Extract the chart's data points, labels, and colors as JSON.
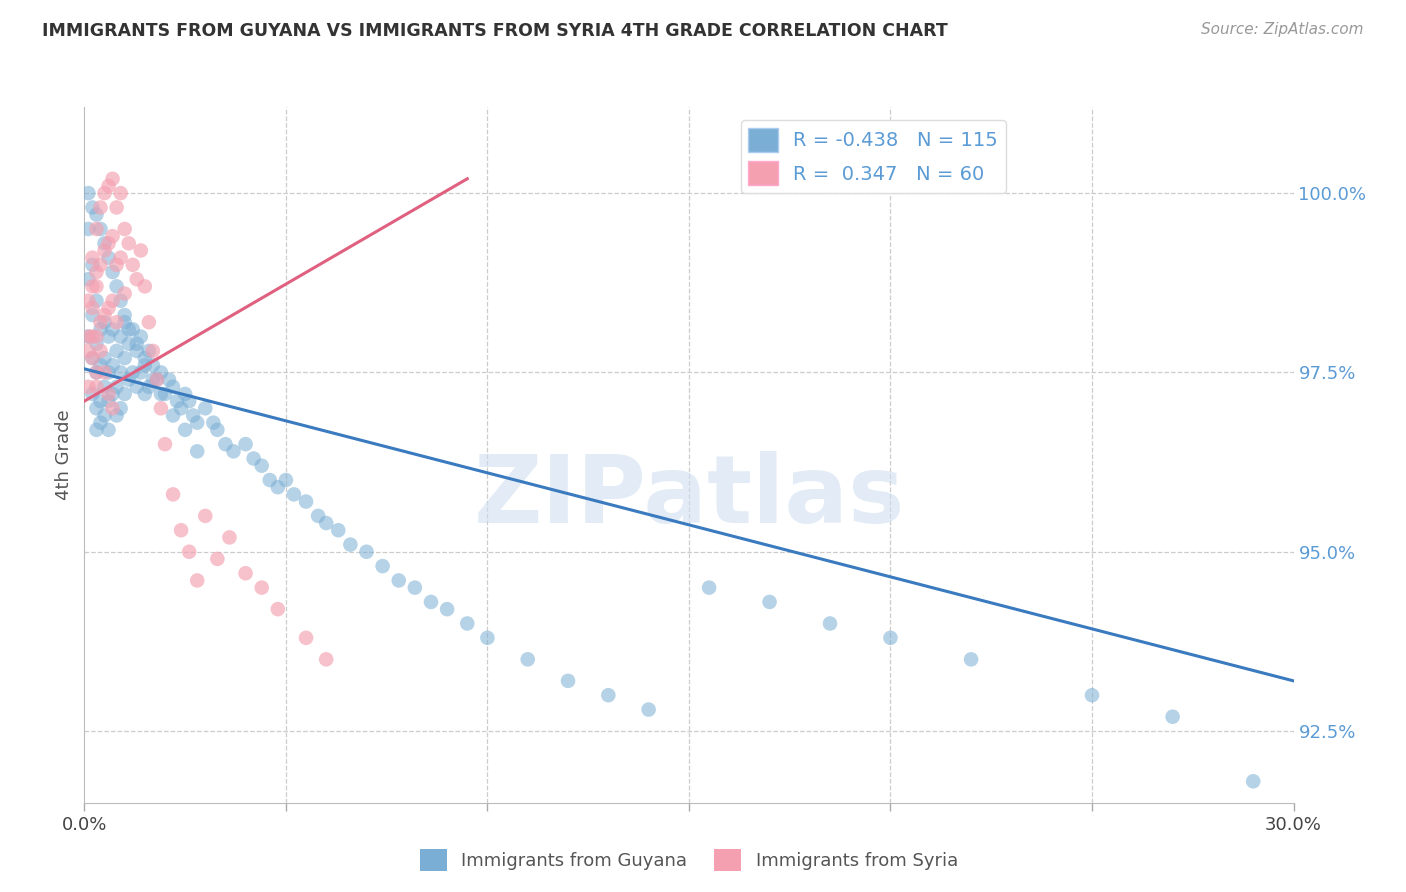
{
  "title": "IMMIGRANTS FROM GUYANA VS IMMIGRANTS FROM SYRIA 4TH GRADE CORRELATION CHART",
  "source": "Source: ZipAtlas.com",
  "ylabel": "4th Grade",
  "watermark": "ZIPatlas",
  "legend_guyana_R": "-0.438",
  "legend_guyana_N": "115",
  "legend_syria_R": "0.347",
  "legend_syria_N": "60",
  "guyana_color": "#7aaed4",
  "syria_color": "#f4a0b0",
  "guyana_line_color": "#3a7abf",
  "syria_line_color": "#e06080",
  "title_color": "#333333",
  "source_color": "#999999",
  "right_axis_color": "#5b9bd5",
  "xlim": [
    0.0,
    0.3
  ],
  "ylim": [
    91.5,
    101.2
  ],
  "x_ticks": [
    0.0,
    0.05,
    0.1,
    0.15,
    0.2,
    0.25,
    0.3
  ],
  "x_tick_labels": [
    "0.0%",
    "",
    "",
    "",
    "",
    "",
    "30.0%"
  ],
  "guyana_line_x0": 0.0,
  "guyana_line_y0": 97.55,
  "guyana_line_x1": 0.3,
  "guyana_line_y1": 93.2,
  "syria_line_x0": 0.0,
  "syria_line_y0": 97.1,
  "syria_line_x1": 0.095,
  "syria_line_y1": 100.2,
  "guyana_scatter_x": [
    0.001,
    0.001,
    0.001,
    0.002,
    0.002,
    0.002,
    0.002,
    0.003,
    0.003,
    0.003,
    0.003,
    0.003,
    0.004,
    0.004,
    0.004,
    0.004,
    0.005,
    0.005,
    0.005,
    0.005,
    0.006,
    0.006,
    0.006,
    0.006,
    0.007,
    0.007,
    0.007,
    0.008,
    0.008,
    0.008,
    0.009,
    0.009,
    0.009,
    0.01,
    0.01,
    0.01,
    0.011,
    0.011,
    0.012,
    0.012,
    0.013,
    0.013,
    0.014,
    0.014,
    0.015,
    0.015,
    0.016,
    0.016,
    0.017,
    0.018,
    0.019,
    0.02,
    0.021,
    0.022,
    0.023,
    0.024,
    0.025,
    0.026,
    0.027,
    0.028,
    0.03,
    0.032,
    0.033,
    0.035,
    0.037,
    0.04,
    0.042,
    0.044,
    0.046,
    0.048,
    0.05,
    0.052,
    0.055,
    0.058,
    0.06,
    0.063,
    0.066,
    0.07,
    0.074,
    0.078,
    0.082,
    0.086,
    0.09,
    0.095,
    0.1,
    0.11,
    0.12,
    0.13,
    0.14,
    0.155,
    0.17,
    0.185,
    0.2,
    0.22,
    0.25,
    0.27,
    0.29,
    0.001,
    0.002,
    0.003,
    0.004,
    0.005,
    0.006,
    0.007,
    0.008,
    0.009,
    0.01,
    0.011,
    0.013,
    0.015,
    0.017,
    0.019,
    0.022,
    0.025,
    0.028
  ],
  "guyana_scatter_y": [
    99.5,
    98.8,
    98.0,
    99.0,
    98.3,
    97.7,
    97.2,
    98.5,
    97.9,
    97.5,
    97.0,
    96.7,
    98.1,
    97.6,
    97.1,
    96.8,
    98.2,
    97.7,
    97.3,
    96.9,
    98.0,
    97.5,
    97.1,
    96.7,
    98.1,
    97.6,
    97.2,
    97.8,
    97.3,
    96.9,
    98.0,
    97.5,
    97.0,
    98.2,
    97.7,
    97.2,
    97.9,
    97.4,
    98.1,
    97.5,
    97.8,
    97.3,
    98.0,
    97.5,
    97.7,
    97.2,
    97.8,
    97.3,
    97.6,
    97.4,
    97.5,
    97.2,
    97.4,
    97.3,
    97.1,
    97.0,
    97.2,
    97.1,
    96.9,
    96.8,
    97.0,
    96.8,
    96.7,
    96.5,
    96.4,
    96.5,
    96.3,
    96.2,
    96.0,
    95.9,
    96.0,
    95.8,
    95.7,
    95.5,
    95.4,
    95.3,
    95.1,
    95.0,
    94.8,
    94.6,
    94.5,
    94.3,
    94.2,
    94.0,
    93.8,
    93.5,
    93.2,
    93.0,
    92.8,
    94.5,
    94.3,
    94.0,
    93.8,
    93.5,
    93.0,
    92.7,
    91.8,
    100.0,
    99.8,
    99.7,
    99.5,
    99.3,
    99.1,
    98.9,
    98.7,
    98.5,
    98.3,
    98.1,
    97.9,
    97.6,
    97.4,
    97.2,
    96.9,
    96.7,
    96.4
  ],
  "syria_scatter_x": [
    0.001,
    0.001,
    0.002,
    0.002,
    0.002,
    0.003,
    0.003,
    0.003,
    0.003,
    0.004,
    0.004,
    0.004,
    0.005,
    0.005,
    0.005,
    0.006,
    0.006,
    0.006,
    0.007,
    0.007,
    0.007,
    0.008,
    0.008,
    0.008,
    0.009,
    0.009,
    0.01,
    0.01,
    0.011,
    0.012,
    0.013,
    0.014,
    0.015,
    0.016,
    0.017,
    0.018,
    0.019,
    0.02,
    0.022,
    0.024,
    0.026,
    0.028,
    0.03,
    0.033,
    0.036,
    0.04,
    0.044,
    0.048,
    0.055,
    0.06,
    0.001,
    0.001,
    0.002,
    0.002,
    0.003,
    0.003,
    0.004,
    0.005,
    0.006,
    0.007
  ],
  "syria_scatter_y": [
    98.5,
    97.8,
    99.1,
    98.4,
    97.7,
    99.5,
    98.7,
    98.0,
    97.3,
    99.8,
    99.0,
    98.2,
    100.0,
    99.2,
    98.3,
    100.1,
    99.3,
    98.4,
    100.2,
    99.4,
    98.5,
    99.8,
    99.0,
    98.2,
    100.0,
    99.1,
    99.5,
    98.6,
    99.3,
    99.0,
    98.8,
    99.2,
    98.7,
    98.2,
    97.8,
    97.4,
    97.0,
    96.5,
    95.8,
    95.3,
    95.0,
    94.6,
    95.5,
    94.9,
    95.2,
    94.7,
    94.5,
    94.2,
    93.8,
    93.5,
    98.0,
    97.3,
    98.7,
    98.0,
    98.9,
    97.5,
    97.8,
    97.5,
    97.2,
    97.0
  ]
}
